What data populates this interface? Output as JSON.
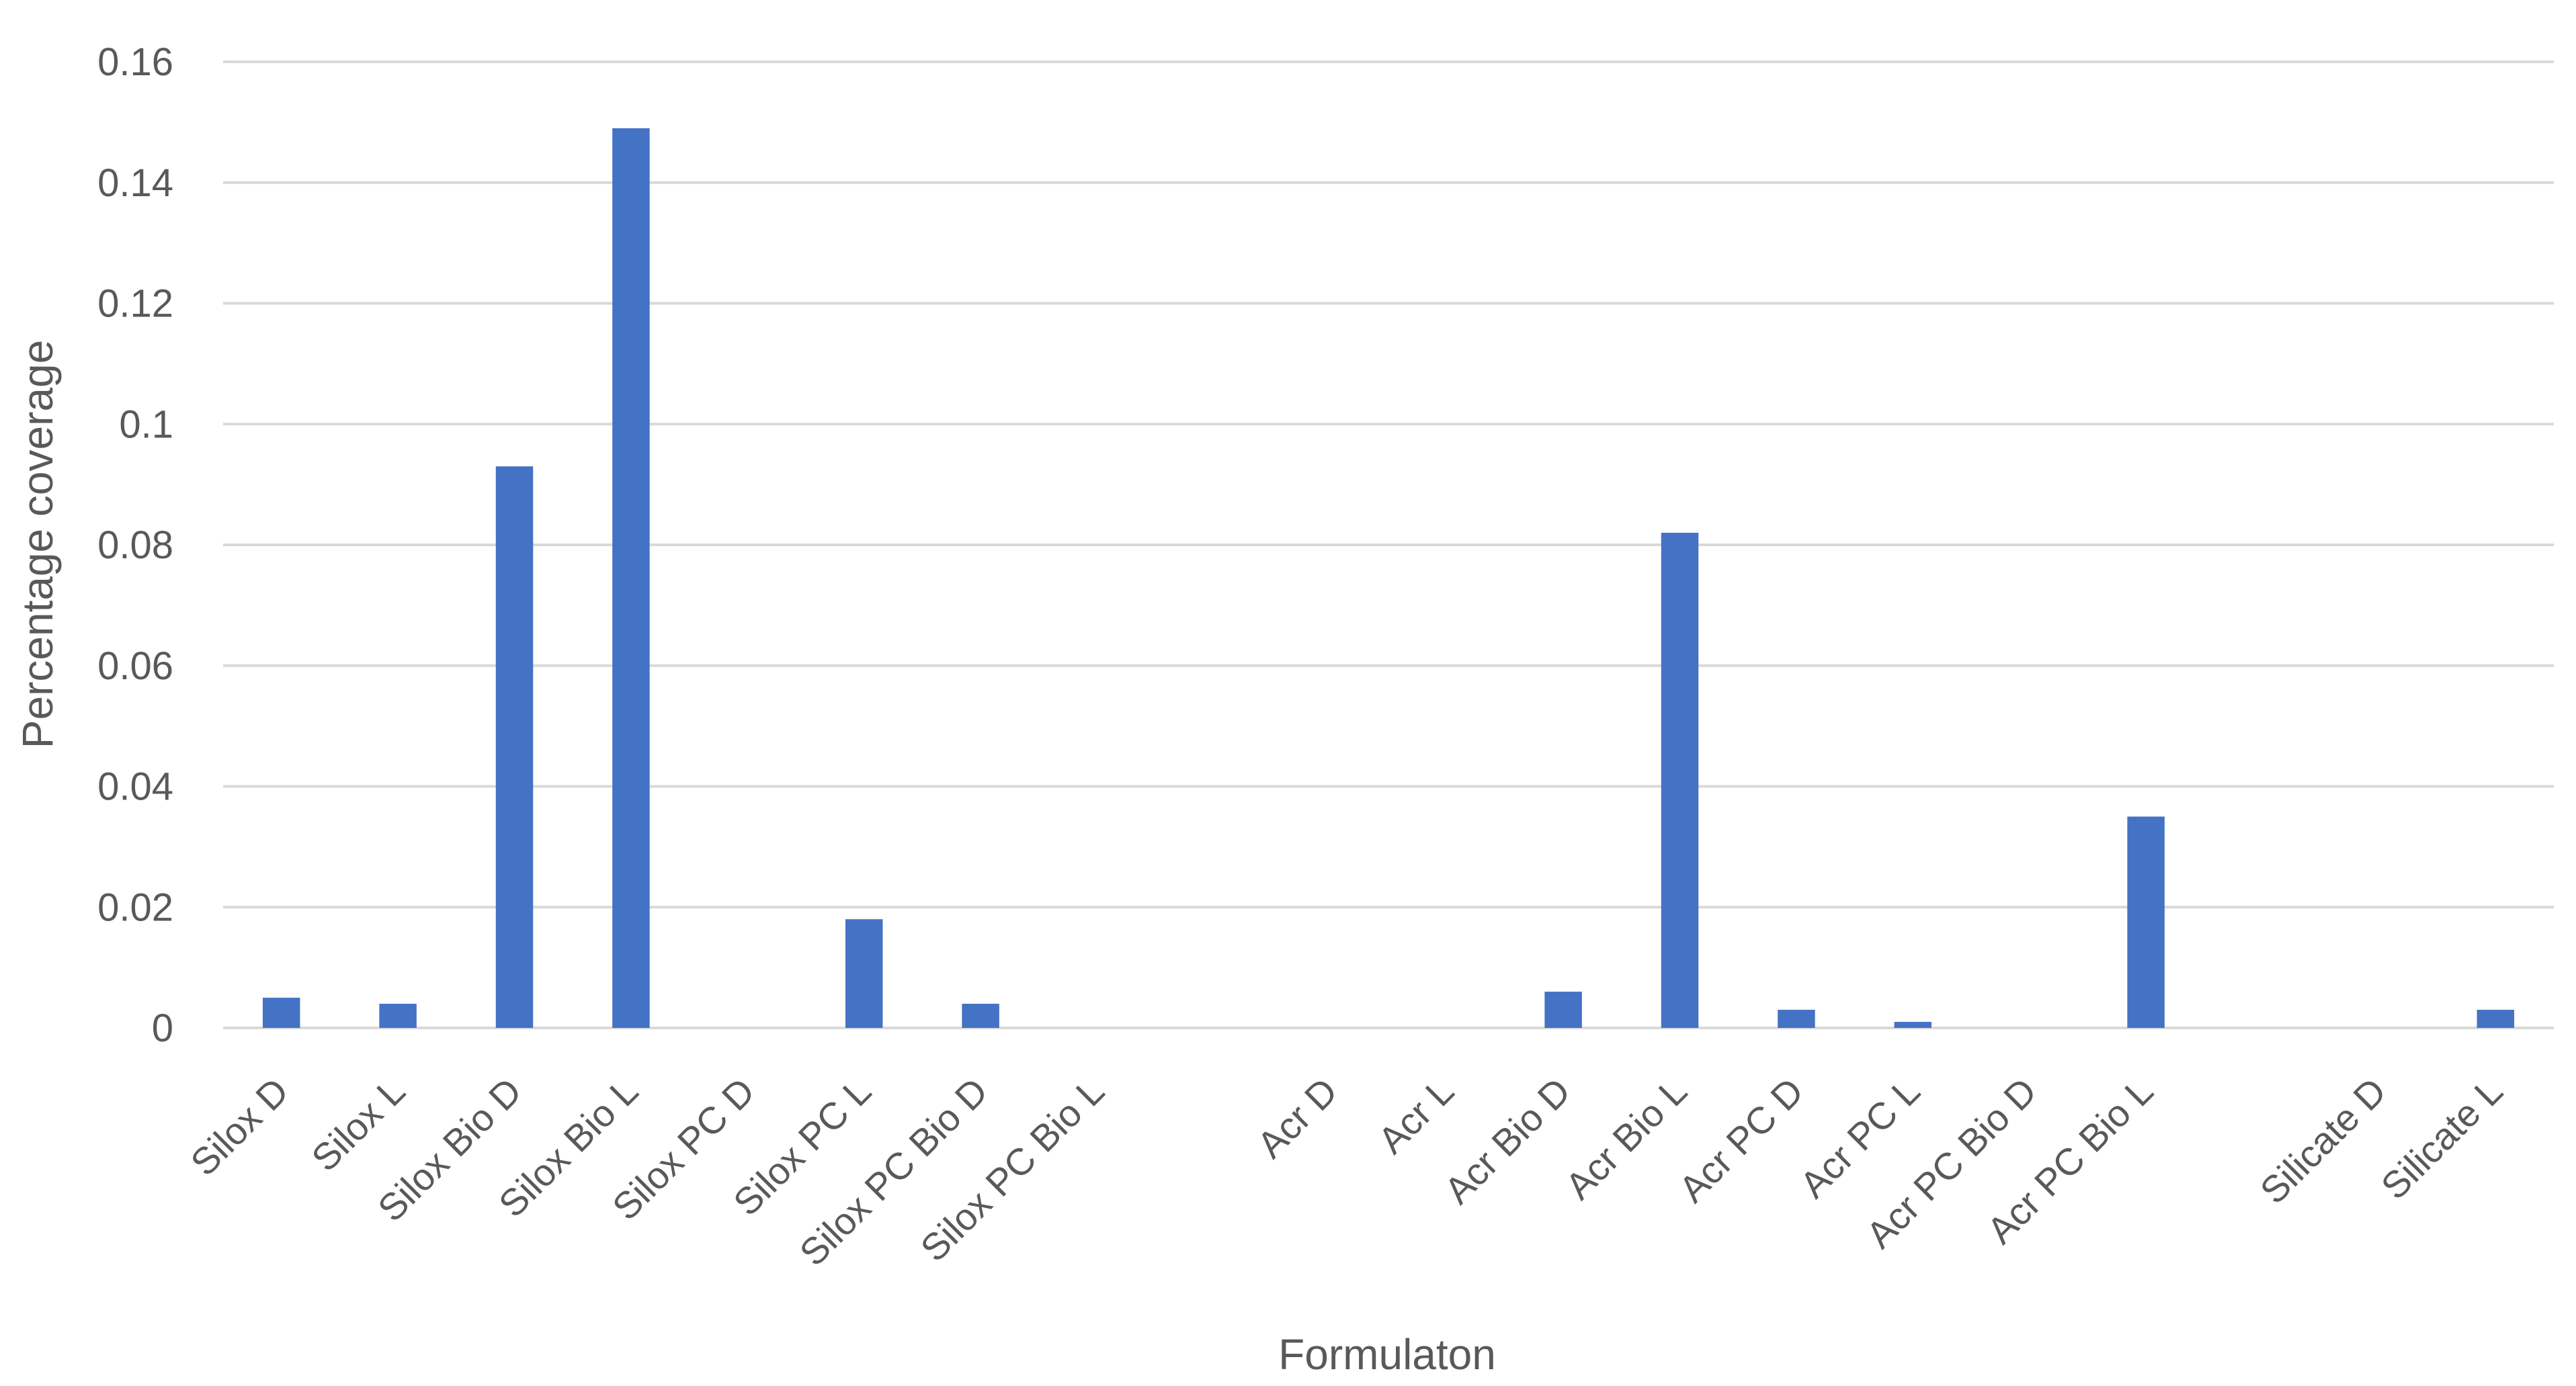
{
  "chart_data": {
    "type": "bar",
    "title": "",
    "xlabel": "Formulaton",
    "ylabel": "Percentage coverage",
    "ylim": [
      0,
      0.16
    ],
    "yticks": [
      "0",
      "0.02",
      "0.04",
      "0.06",
      "0.08",
      "0.1",
      "0.12",
      "0.14",
      "0.16"
    ],
    "grid": true,
    "bar_color": "#4472C4",
    "categories": [
      "Silox D",
      "Silox L",
      "Silox Bio D",
      "Silox Bio L",
      "Silox PC D",
      "Silox PC L",
      "Silox PC Bio D",
      "Silox PC Bio L",
      "",
      "Acr D",
      "Acr L",
      "Acr Bio D",
      "Acr Bio L",
      "Acr PC D",
      "Acr PC L",
      "Acr PC Bio D",
      "Acr PC Bio L",
      "",
      "Silicate D",
      "Silicate L"
    ],
    "values": [
      0.005,
      0.004,
      0.093,
      0.149,
      0,
      0.018,
      0.004,
      0,
      null,
      0,
      0,
      0.006,
      0.082,
      0.003,
      0.001,
      0,
      0.035,
      null,
      0,
      0.003
    ]
  }
}
